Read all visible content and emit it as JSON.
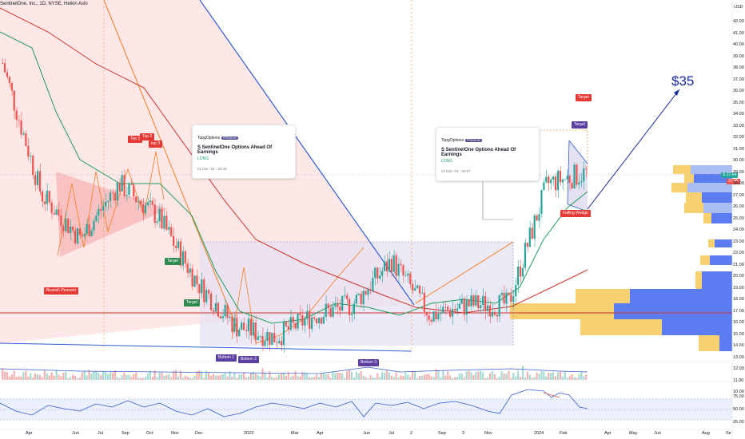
{
  "header": {
    "symbol_line": "SentinelOne, Inc., 1D, NYSE, Heikin Ashi"
  },
  "currency": "USD",
  "annotation_35": "$35",
  "callouts": [
    {
      "source": "TopgOptions",
      "badge": "PREMIUM",
      "title": "S SentinelOne Options Ahead Of Earnings",
      "side": "LONG",
      "date": "01 Dec '22 · 20:49"
    },
    {
      "source": "TopgOptions",
      "badge": "PREMIUM",
      "title": "S SentinelOne Options Ahead Of Earnings",
      "side": "LONG",
      "date": "01 Dec '23 · 08:07"
    }
  ],
  "labels": {
    "top1": "Top 1",
    "top2": "Top 2",
    "top3": "top 3",
    "bearish_pennant": "Bearish Pennant",
    "target_a": "Target",
    "target_b": "Target",
    "bottom1": "Bottom 1",
    "bottom2": "Bottom 2",
    "bottom3": "Bottom 3",
    "target_c": "Target",
    "target_d": "Target",
    "falling_wedge": "Falling Wedge"
  },
  "price_tags": {
    "current": "27.64",
    "second": "27.45",
    "prefix": "S"
  },
  "y_axis": [
    "42.00",
    "41.00",
    "40.00",
    "39.00",
    "38.00",
    "37.00",
    "36.00",
    "35.00",
    "34.00",
    "33.00",
    "32.00",
    "31.00",
    "30.00",
    "29.00",
    "28.00",
    "27.00",
    "26.00",
    "25.00",
    "24.00",
    "23.00",
    "22.00",
    "21.00",
    "20.00",
    "19.00",
    "18.00",
    "17.00",
    "16.00",
    "15.00",
    "14.00",
    "13.00",
    "12.00",
    "11.00",
    "10.00"
  ],
  "rsi_axis": [
    "75.00",
    "50.00",
    "25.00"
  ],
  "x_axis": [
    "Apr",
    "Jun",
    "Jul",
    "Sep",
    "Oct",
    "Nov",
    "Dec",
    "2023",
    "Mar",
    "Apr",
    "Jun",
    "Jul",
    "2",
    "Sep",
    "3",
    "Nov",
    "2024",
    "Feb",
    "Apr",
    "May",
    "Jun",
    "Aug",
    "Se"
  ],
  "colors": {
    "bull": "#26a69a",
    "bear": "#ef5350",
    "pennant": "#f7c1c1",
    "wedge": "#d9d4ee",
    "ema_fast": "#1f9e5a",
    "ema_slow": "#d0342c",
    "trendline": "#2f5bd3",
    "orange": "#f57c1f",
    "vp_blue": "#5b7cf0",
    "vp_yellow": "#f7d072"
  },
  "chart_data": {
    "type": "candlestick",
    "title": "SentinelOne, Inc., 1D, NYSE, Heikin Ashi",
    "ylim": [
      10,
      42
    ],
    "x": [
      "Apr",
      "Jun",
      "Jul",
      "Sep",
      "Oct",
      "Nov",
      "Dec",
      "2023",
      "Mar",
      "Apr",
      "Jun",
      "Jul",
      "Sep",
      "Nov",
      "2024",
      "Feb"
    ],
    "close_approx": [
      38,
      26,
      22,
      27,
      24,
      18,
      14,
      13,
      15,
      16,
      20,
      15,
      16,
      16,
      27,
      28
    ],
    "indicators": [
      "EMA fast",
      "EMA slow",
      "RSI",
      "Volume"
    ]
  }
}
